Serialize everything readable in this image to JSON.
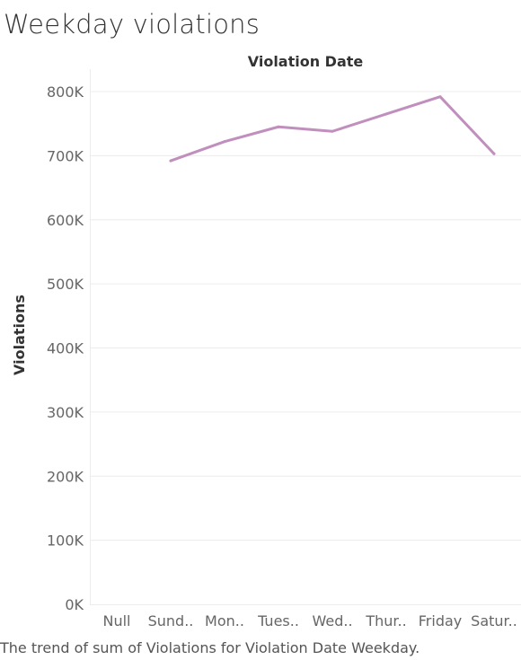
{
  "title": "Weekday violations",
  "caption": "The trend of sum of Violations for Violation Date Weekday.",
  "colors": {
    "line": "#c08fbd",
    "grid": "#ececec",
    "axis_text": "#666666",
    "title_text": "#333333"
  },
  "chart_data": {
    "type": "line",
    "title": "",
    "xlabel": "Violation Date",
    "ylabel": "Violations",
    "ylim": [
      0,
      800000
    ],
    "categories": [
      "Null",
      "Sund..",
      "Mon..",
      "Tues..",
      "Wed..",
      "Thur..",
      "Friday",
      "Satur.."
    ],
    "yticks": [
      0,
      100000,
      200000,
      300000,
      400000,
      500000,
      600000,
      700000,
      800000
    ],
    "ytick_labels": [
      "0K",
      "100K",
      "200K",
      "300K",
      "400K",
      "500K",
      "600K",
      "700K",
      "800K"
    ],
    "series": [
      {
        "values": [
          null,
          692000,
          722000,
          745000,
          738000,
          765000,
          792000,
          703000
        ]
      }
    ],
    "grid": true,
    "legend": "none"
  }
}
